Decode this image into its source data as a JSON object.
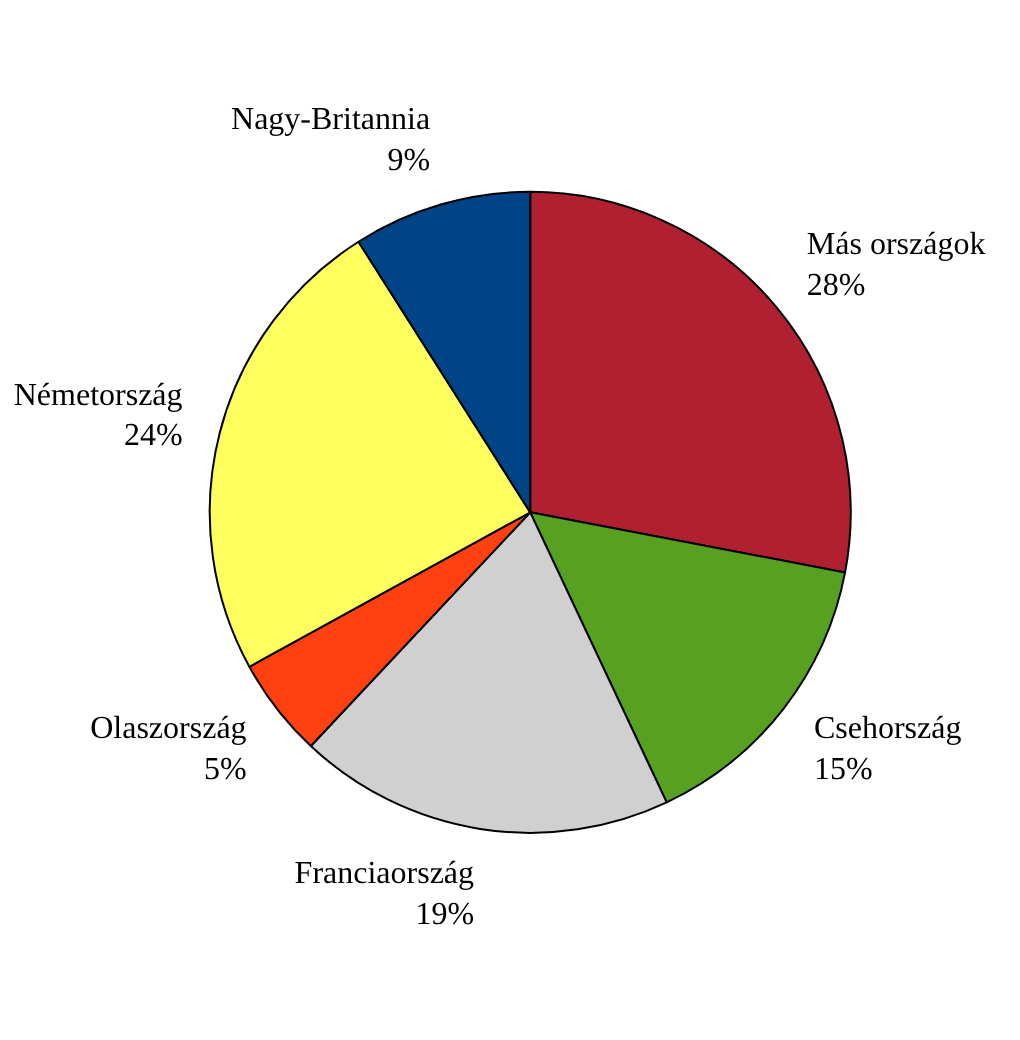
{
  "chart_data": {
    "type": "pie",
    "categories": [
      "Más országok",
      "Csehország",
      "Franciaország",
      "Olaszország",
      "Németország",
      "Nagy-Britannia"
    ],
    "values": [
      28,
      15,
      19,
      5,
      24,
      9
    ],
    "value_labels": [
      "28%",
      "15%",
      "19%",
      "5%",
      "24%",
      "9%"
    ],
    "colors": [
      "#b02030",
      "#58a020",
      "#d0d0d0",
      "#ff4010",
      "#ffff60",
      "#004488"
    ],
    "legend": false
  }
}
